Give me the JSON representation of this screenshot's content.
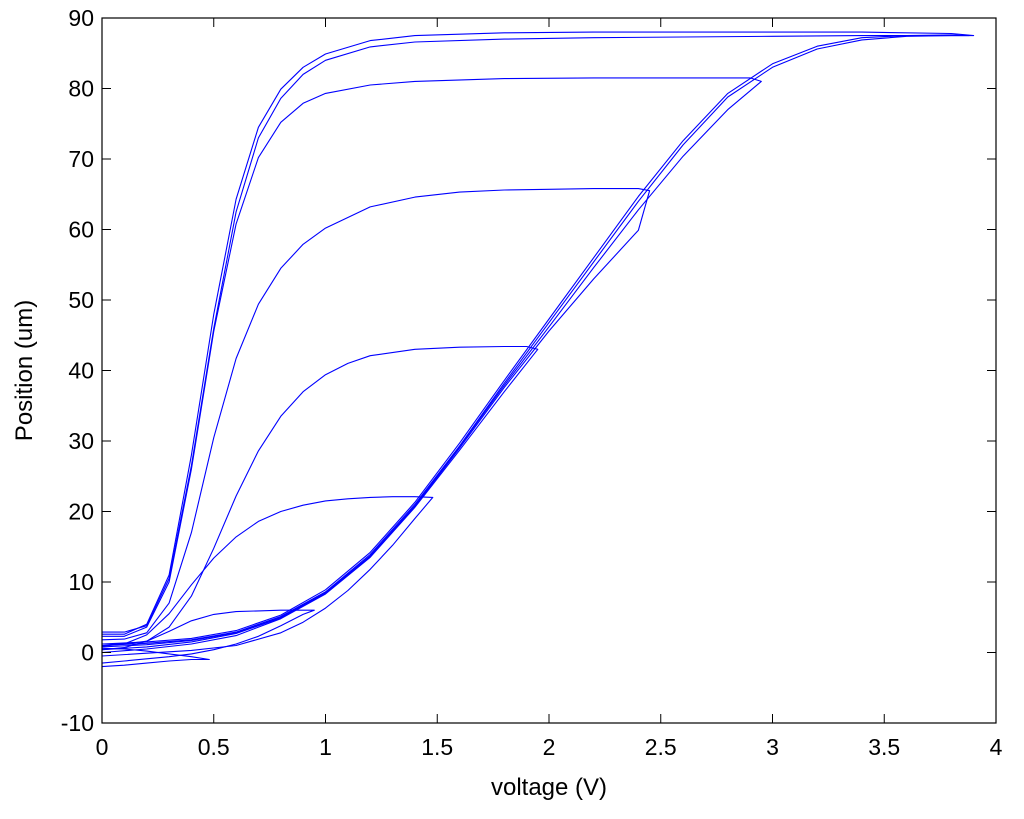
{
  "chart_data": {
    "type": "line",
    "title": "",
    "xlabel": "voltage (V)",
    "ylabel": "Position (um)",
    "xlim": [
      0,
      4
    ],
    "ylim": [
      -10,
      90
    ],
    "xticks": [
      0,
      0.5,
      1,
      1.5,
      2,
      2.5,
      3,
      3.5,
      4
    ],
    "xtick_labels": [
      "0",
      "0.5",
      "1",
      "1.5",
      "2",
      "2.5",
      "3",
      "3.5",
      "4"
    ],
    "yticks": [
      -10,
      0,
      10,
      20,
      30,
      40,
      50,
      60,
      70,
      80,
      90
    ],
    "ytick_labels": [
      "-10",
      "0",
      "10",
      "20",
      "30",
      "40",
      "50",
      "60",
      "70",
      "80",
      "90"
    ],
    "grid": false,
    "line_color": "#0000ff",
    "series": [
      {
        "label_hint": "ramp to 0.5 V",
        "x": [
          0,
          0.1,
          0.2,
          0.3,
          0.4,
          0.48,
          0.4,
          0.3,
          0.2,
          0.1,
          0
        ],
        "y": [
          -2,
          -1.8,
          -1.5,
          -1.2,
          -1.0,
          -1.0,
          -0.6,
          -0.2,
          0.2,
          0.5,
          0.6
        ]
      },
      {
        "label_hint": "ramp to 1 V",
        "x": [
          0,
          0.1,
          0.2,
          0.3,
          0.4,
          0.5,
          0.6,
          0.7,
          0.8,
          0.9,
          0.95,
          0.9,
          0.8,
          0.7,
          0.6,
          0.5,
          0.4,
          0.3,
          0.2,
          0.1,
          0
        ],
        "y": [
          -1.5,
          -1.2,
          -0.9,
          -0.6,
          -0.2,
          0.4,
          1.2,
          2.3,
          3.8,
          5.4,
          6.0,
          6.0,
          6.0,
          5.9,
          5.8,
          5.4,
          4.5,
          3.0,
          1.6,
          0.7,
          0.4
        ]
      },
      {
        "label_hint": "ramp to 1.5 V",
        "x": [
          0,
          0.2,
          0.4,
          0.6,
          0.8,
          0.9,
          1.0,
          1.1,
          1.2,
          1.3,
          1.4,
          1.48,
          1.4,
          1.3,
          1.2,
          1.1,
          1.0,
          0.9,
          0.8,
          0.7,
          0.6,
          0.5,
          0.4,
          0.3,
          0.2,
          0.1,
          0
        ],
        "y": [
          -0.5,
          -0.1,
          0.3,
          1.0,
          2.8,
          4.3,
          6.3,
          8.8,
          11.8,
          15.2,
          19.0,
          22.0,
          22.1,
          22.1,
          22.0,
          21.8,
          21.5,
          20.9,
          20.0,
          18.6,
          16.4,
          13.4,
          9.6,
          5.5,
          2.5,
          1.2,
          0.9
        ]
      },
      {
        "label_hint": "ramp to 2 V",
        "x": [
          0,
          0.2,
          0.4,
          0.6,
          0.8,
          1.0,
          1.2,
          1.4,
          1.6,
          1.8,
          1.95,
          1.9,
          1.8,
          1.6,
          1.4,
          1.2,
          1.1,
          1.0,
          0.9,
          0.8,
          0.7,
          0.6,
          0.5,
          0.4,
          0.3,
          0.2,
          0.1,
          0
        ],
        "y": [
          0.0,
          0.5,
          1.2,
          2.4,
          4.8,
          8.3,
          13.5,
          20.6,
          28.7,
          37.0,
          43.0,
          43.4,
          43.4,
          43.3,
          43.0,
          42.1,
          41.0,
          39.4,
          37.0,
          33.5,
          28.6,
          22.2,
          14.8,
          8.0,
          3.6,
          1.6,
          1.2,
          1.2
        ]
      },
      {
        "label_hint": "ramp to 2.5 V",
        "x": [
          0,
          0.2,
          0.4,
          0.6,
          0.8,
          1.0,
          1.2,
          1.4,
          1.6,
          1.8,
          2.0,
          2.2,
          2.4,
          2.45,
          2.4,
          2.2,
          2.0,
          1.8,
          1.6,
          1.4,
          1.2,
          1.0,
          0.9,
          0.8,
          0.7,
          0.6,
          0.5,
          0.4,
          0.3,
          0.2,
          0.1,
          0
        ],
        "y": [
          0.4,
          0.8,
          1.5,
          2.7,
          4.9,
          8.4,
          13.6,
          20.7,
          29.0,
          37.6,
          45.6,
          53.0,
          59.9,
          65.5,
          65.8,
          65.8,
          65.7,
          65.6,
          65.3,
          64.6,
          63.2,
          60.2,
          57.9,
          54.5,
          49.4,
          41.7,
          30.5,
          17.0,
          7.0,
          2.8,
          1.9,
          1.8
        ]
      },
      {
        "label_hint": "ramp to 3 V",
        "x": [
          0,
          0.2,
          0.4,
          0.6,
          0.8,
          1.0,
          1.2,
          1.4,
          1.6,
          1.8,
          2.0,
          2.2,
          2.4,
          2.6,
          2.8,
          2.95,
          2.9,
          2.6,
          2.2,
          1.8,
          1.4,
          1.2,
          1.0,
          0.9,
          0.8,
          0.7,
          0.6,
          0.5,
          0.4,
          0.3,
          0.2,
          0.1,
          0
        ],
        "y": [
          0.8,
          1.1,
          1.7,
          2.8,
          5.0,
          8.5,
          13.7,
          20.8,
          29.2,
          37.9,
          46.2,
          54.6,
          62.8,
          70.4,
          77.0,
          81.0,
          81.5,
          81.5,
          81.5,
          81.4,
          81.0,
          80.5,
          79.3,
          77.9,
          75.2,
          70.2,
          60.8,
          45.6,
          26.0,
          10.0,
          3.6,
          2.3,
          2.3
        ]
      },
      {
        "label_hint": "ramp to 3.9 V (a)",
        "x": [
          0,
          0.2,
          0.4,
          0.6,
          0.8,
          1.0,
          1.2,
          1.4,
          1.6,
          1.8,
          2.0,
          2.2,
          2.4,
          2.6,
          2.8,
          3.0,
          3.2,
          3.4,
          3.6,
          3.8,
          3.9,
          3.8,
          3.4,
          3.0,
          2.6,
          2.2,
          1.8,
          1.4,
          1.2,
          1.0,
          0.9,
          0.8,
          0.7,
          0.6,
          0.5,
          0.4,
          0.3,
          0.2,
          0.1,
          0
        ],
        "y": [
          1.0,
          1.3,
          1.8,
          2.9,
          5.1,
          8.6,
          13.9,
          21.0,
          29.3,
          38.2,
          46.8,
          55.4,
          64.0,
          72.0,
          78.8,
          83.0,
          85.6,
          86.9,
          87.4,
          87.5,
          87.5,
          87.8,
          88.0,
          88.0,
          88.0,
          88.0,
          87.9,
          87.5,
          86.8,
          84.9,
          83.0,
          79.9,
          74.5,
          64.3,
          48.0,
          28.0,
          11.0,
          4.0,
          2.6,
          2.6
        ]
      },
      {
        "label_hint": "ramp to 3.9 V (b)",
        "x": [
          0,
          0.2,
          0.4,
          0.6,
          0.8,
          1.0,
          1.2,
          1.4,
          1.6,
          1.8,
          2.0,
          2.2,
          2.4,
          2.6,
          2.8,
          3.0,
          3.2,
          3.4,
          3.6,
          3.8,
          3.88,
          3.8,
          3.4,
          3.0,
          2.6,
          2.2,
          1.8,
          1.4,
          1.2,
          1.0,
          0.9,
          0.8,
          0.7,
          0.6,
          0.5,
          0.4,
          0.3,
          0.2,
          0.1,
          0
        ],
        "y": [
          1.2,
          1.5,
          2.0,
          3.1,
          5.3,
          8.9,
          14.2,
          21.3,
          29.7,
          38.6,
          47.3,
          56.0,
          64.7,
          72.6,
          79.3,
          83.5,
          86.0,
          87.2,
          87.5,
          87.6,
          87.5,
          87.5,
          87.5,
          87.4,
          87.3,
          87.2,
          87.0,
          86.6,
          85.9,
          84.0,
          82.0,
          78.6,
          73.0,
          62.5,
          46.0,
          26.5,
          10.5,
          3.8,
          2.9,
          2.9
        ]
      }
    ]
  }
}
